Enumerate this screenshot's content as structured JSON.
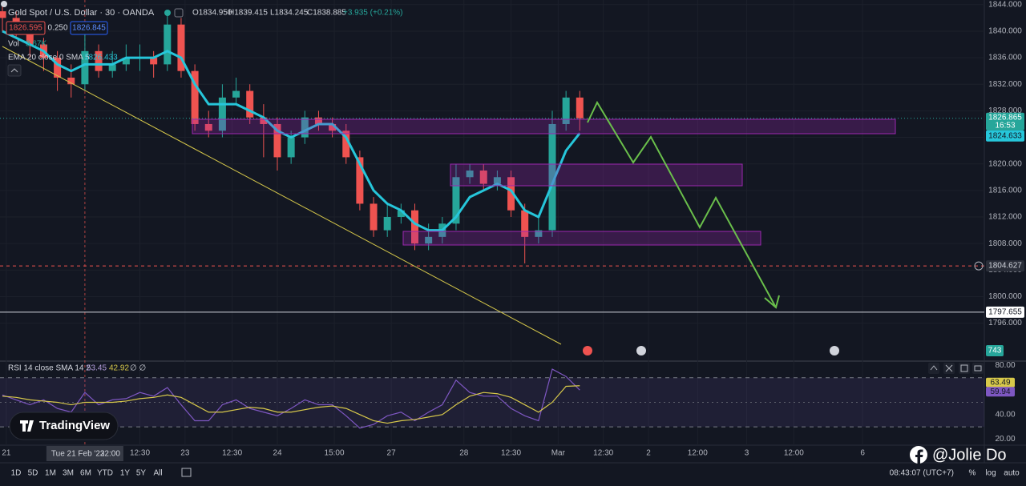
{
  "header": {
    "title": "Gold Spot / U.S. Dollar · 30 · OANDA",
    "ohlc": [
      "O1834.950",
      "H1839.415",
      "L1834.245",
      "C1838.885"
    ],
    "change": "+3.935 (+0.21%)",
    "sell": "1826.595",
    "spread": "0.250",
    "buy": "1826.845",
    "vol_label": "Vol",
    "vol_value": "3.67K",
    "ema_label": "EMA 20 close 0 SMA 5",
    "ema_value": "1826.433"
  },
  "chart_data": [
    {
      "type": "candlestick",
      "x": [
        0,
        7,
        14,
        21,
        28,
        35,
        42,
        49,
        56,
        63,
        70,
        77,
        84,
        91,
        98,
        105,
        112,
        119,
        126,
        133,
        140,
        147,
        154,
        161,
        168,
        175,
        182,
        189,
        196,
        203,
        210,
        217,
        224,
        231,
        238,
        245,
        252,
        259,
        266,
        273,
        280,
        287,
        294
      ],
      "open": [
        1843,
        1842,
        1840,
        1838,
        1836,
        1833,
        1832,
        1837,
        1834,
        1835,
        1836,
        1836,
        1835,
        1841,
        1834,
        1826,
        1825,
        1830,
        1831,
        1827,
        1826,
        1821,
        1824,
        1827,
        1826,
        1825,
        1821,
        1814,
        1810,
        1812,
        1813,
        1808,
        1809,
        1811,
        1818,
        1819,
        1817,
        1818,
        1813,
        1809,
        1810,
        1826,
        1830
      ],
      "high": [
        1844,
        1843,
        1841,
        1839,
        1837,
        1835,
        1840,
        1838,
        1837,
        1838,
        1838,
        1837,
        1843,
        1842,
        1835,
        1828,
        1832,
        1833,
        1832,
        1829,
        1827,
        1825,
        1828,
        1828,
        1827,
        1826,
        1822,
        1815,
        1814,
        1814,
        1814,
        1811,
        1812,
        1820,
        1820,
        1820,
        1819,
        1819,
        1814,
        1812,
        1828,
        1831,
        1831
      ],
      "low": [
        1840,
        1839,
        1836,
        1834,
        1831,
        1830,
        1831,
        1833,
        1833,
        1834,
        1834,
        1833,
        1834,
        1833,
        1825,
        1824,
        1824,
        1829,
        1826,
        1821,
        1819,
        1820,
        1823,
        1825,
        1824,
        1820,
        1813,
        1809,
        1809,
        1811,
        1807,
        1807,
        1808,
        1810,
        1817,
        1816,
        1816,
        1812,
        1805,
        1808,
        1809,
        1825,
        1825
      ],
      "close": [
        1842,
        1840,
        1838,
        1836,
        1833,
        1832,
        1837,
        1834,
        1835,
        1836,
        1836,
        1835,
        1841,
        1834,
        1826,
        1825,
        1830,
        1831,
        1827,
        1826,
        1821,
        1824,
        1827,
        1826,
        1825,
        1821,
        1814,
        1810,
        1812,
        1813,
        1808,
        1809,
        1811,
        1818,
        1819,
        1817,
        1818,
        1813,
        1809,
        1810,
        1826,
        1830,
        1826.865
      ],
      "up_color": "#26a69a",
      "down_color": "#ef5350",
      "ema": {
        "color": "#26c6da",
        "values": [
          1840,
          1839,
          1838,
          1837,
          1835,
          1834,
          1835,
          1835,
          1835,
          1836,
          1836,
          1836,
          1837,
          1836,
          1832,
          1829,
          1829,
          1829,
          1828,
          1827,
          1825,
          1824,
          1825,
          1826,
          1826,
          1824,
          1820,
          1816,
          1814,
          1813,
          1811,
          1810,
          1810,
          1812,
          1815,
          1816,
          1817,
          1816,
          1813,
          1812,
          1817,
          1822,
          1824.633
        ]
      },
      "countdown": "16:53",
      "last_volume": 743,
      "levels": [
        {
          "value": 1804.627,
          "color": "#ef5350"
        },
        {
          "value": 1797.655,
          "color": "#d1d4dc"
        }
      ],
      "xlim": [
        0,
        500
      ],
      "ylim": [
        1790.4,
        1844.7
      ],
      "yticks": [
        {
          "value": 1796,
          "label": "1796.000"
        },
        {
          "value": 1800,
          "label": "1800.000"
        },
        {
          "value": 1804,
          "label": "1804.000"
        },
        {
          "value": 1808,
          "label": "1808.000"
        },
        {
          "value": 1812,
          "label": "1812.000"
        },
        {
          "value": 1816,
          "label": "1816.000"
        },
        {
          "value": 1820,
          "label": "1820.000"
        },
        {
          "value": 1824,
          "label": "1824.000"
        },
        {
          "value": 1828,
          "label": "1828.000"
        },
        {
          "value": 1832,
          "label": "1832.000"
        },
        {
          "value": 1836,
          "label": "1836.000"
        },
        {
          "value": 1840,
          "label": "1840.000"
        },
        {
          "value": 1844,
          "label": "1844.000"
        }
      ],
      "grid": true
    },
    {
      "type": "line",
      "title": "RSI 14 close SMA 14 2",
      "legend_values": [
        "53.45",
        "42.92",
        "∅ ∅"
      ],
      "x": [
        0,
        7,
        14,
        21,
        28,
        35,
        42,
        49,
        56,
        63,
        70,
        77,
        84,
        91,
        98,
        105,
        112,
        119,
        126,
        133,
        140,
        147,
        154,
        161,
        168,
        175,
        182,
        189,
        196,
        203,
        210,
        217,
        224,
        231,
        238,
        245,
        252,
        259,
        266,
        273,
        280,
        287,
        294
      ],
      "series": [
        {
          "color": "#7e57c2",
          "values": [
            56,
            52,
            48,
            52,
            45,
            42,
            58,
            48,
            52,
            53,
            58,
            55,
            62,
            48,
            35,
            35,
            48,
            52,
            45,
            42,
            39,
            45,
            52,
            48,
            48,
            39,
            29,
            32,
            39,
            42,
            35,
            42,
            48,
            68,
            58,
            55,
            55,
            45,
            39,
            35,
            77,
            71,
            59.94
          ]
        },
        {
          "color": "#d8c94a",
          "values": [
            55,
            54,
            52,
            51,
            50,
            48,
            50,
            50,
            50,
            51,
            53,
            54,
            56,
            54,
            48,
            42,
            42,
            44,
            46,
            45,
            42,
            42,
            44,
            46,
            47,
            45,
            40,
            35,
            33,
            35,
            36,
            38,
            40,
            48,
            55,
            58,
            57,
            54,
            48,
            42,
            50,
            63,
            63.49
          ]
        }
      ],
      "bands": [
        30,
        70
      ],
      "midline": 50,
      "xlim": [
        0,
        500
      ],
      "ylim": [
        15.1,
        82.9
      ],
      "yticks": [
        {
          "value": 80,
          "label": "80.00"
        },
        {
          "value": 40,
          "label": "40.00"
        },
        {
          "value": 20,
          "label": "20.00"
        }
      ],
      "xticks": [
        {
          "value": 2,
          "label": "21"
        },
        {
          "value": 70,
          "label": "12:30"
        },
        {
          "value": 93,
          "label": "23"
        },
        {
          "value": 117,
          "label": "12:30"
        },
        {
          "value": 140,
          "label": "24"
        },
        {
          "value": 169,
          "label": "15:00"
        },
        {
          "value": 198,
          "label": "27"
        },
        {
          "value": 235,
          "label": "28"
        },
        {
          "value": 259,
          "label": "12:30"
        },
        {
          "value": 283,
          "label": "Mar"
        },
        {
          "value": 306,
          "label": "12:30"
        },
        {
          "value": 329,
          "label": "2"
        },
        {
          "value": 354,
          "label": "12:00"
        },
        {
          "value": 379,
          "label": "3"
        },
        {
          "value": 403,
          "label": "12:00"
        },
        {
          "value": 438,
          "label": "6"
        }
      ],
      "crosshair": {
        "value": 42,
        "label": "Tue 21 Feb '23",
        "time": "22:00"
      }
    }
  ],
  "toolbar": {
    "ranges": [
      "1D",
      "5D",
      "1M",
      "3M",
      "6M",
      "YTD",
      "1Y",
      "5Y",
      "All"
    ],
    "clock": "08:43:07 (UTC+7)",
    "scale": [
      "%",
      "log",
      "auto"
    ]
  },
  "watermark": "TradingView",
  "credit": "@Jolie Do"
}
